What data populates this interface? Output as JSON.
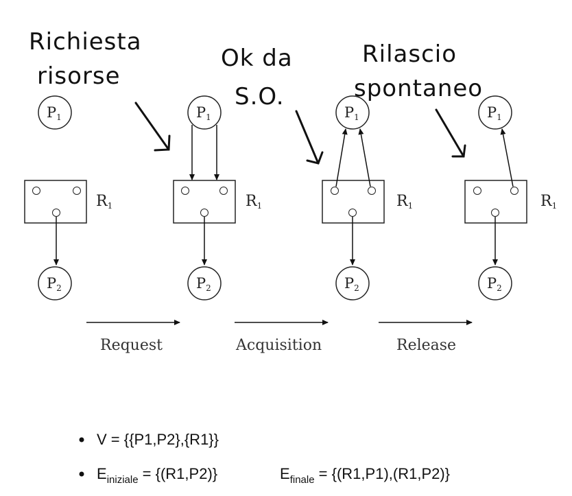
{
  "annotations": {
    "request": [
      "Richiesta",
      "risorse"
    ],
    "ok": [
      "Ok da",
      "S.O."
    ],
    "release": [
      "Rilascio",
      "spontaneo"
    ]
  },
  "nodes": {
    "p1": {
      "letter": "P",
      "sub": "1"
    },
    "p2": {
      "letter": "P",
      "sub": "2"
    },
    "r1": {
      "letter": "R",
      "sub": "1"
    }
  },
  "steps": {
    "request": "Request",
    "acquisition": "Acquisition",
    "release": "Release"
  },
  "bullets": {
    "v": "V = {{P1,P2},{R1}}",
    "e_initial_label": "E",
    "e_initial_sub": "iniziale",
    "e_initial_value": " = {(R1,P2)}",
    "e_final_label": "E",
    "e_final_sub": "finale",
    "e_final_value": " = {(R1,P1),(R1,P2)}"
  }
}
